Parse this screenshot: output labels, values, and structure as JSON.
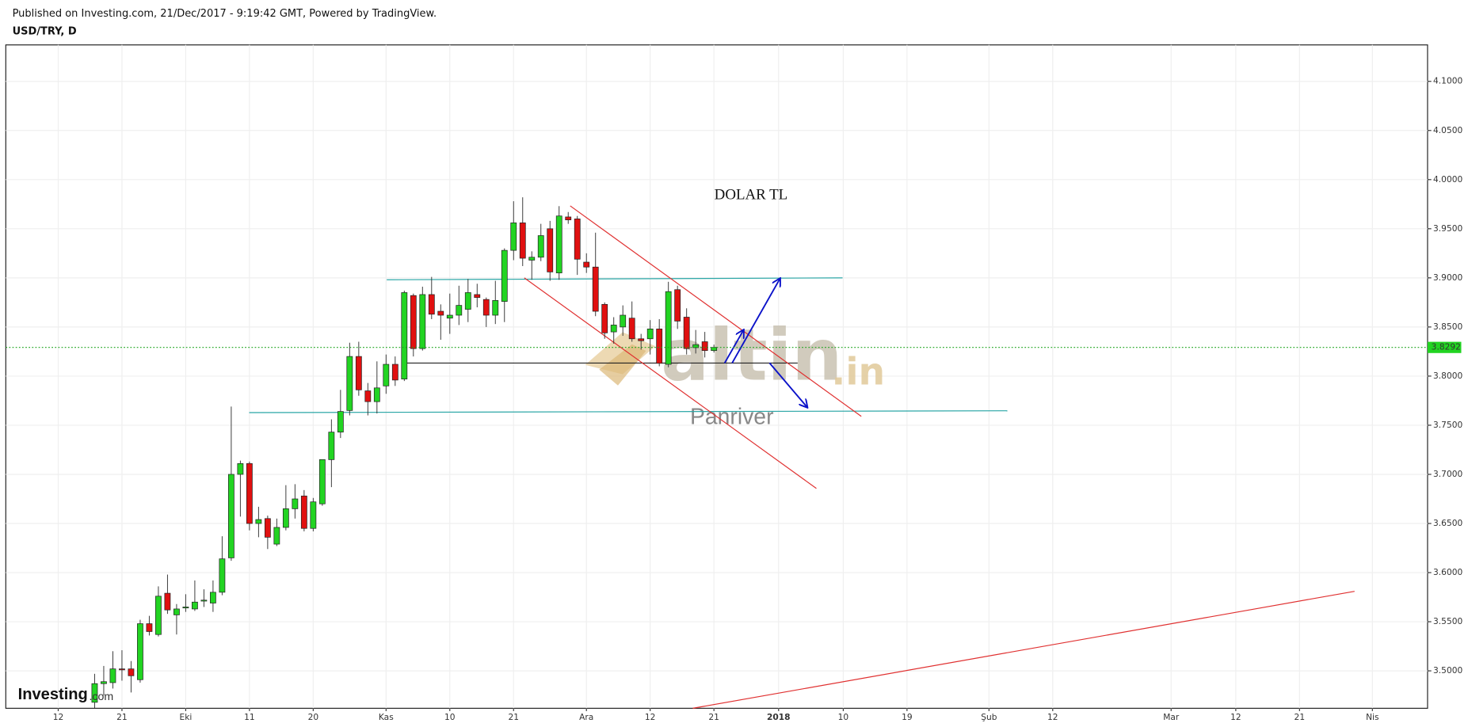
{
  "header": {
    "published": "Published on Investing.com, 21/Dec/2017 - 9:19:42 GMT, Powered by TradingView.",
    "symbol": "USD/TRY, D"
  },
  "chart_data": {
    "type": "candlestick",
    "up_color": "#22d422",
    "down_color": "#e01010",
    "grid": true,
    "annotation": "DOLAR TL",
    "watermark_main": "altin",
    "watermark_suffix": ".in",
    "watermark_sub": "Panriver",
    "logo_main": "Investing",
    "logo_suffix": ".com",
    "last_price": 3.8292,
    "xlim": [
      -5.755,
      150.36
    ],
    "xticks": [
      {
        "value": 0,
        "label": "12"
      },
      {
        "value": 7,
        "label": "21"
      },
      {
        "value": 14,
        "label": "Eki"
      },
      {
        "value": 21,
        "label": "11"
      },
      {
        "value": 28,
        "label": "20"
      },
      {
        "value": 36,
        "label": "Kas"
      },
      {
        "value": 43,
        "label": "10"
      },
      {
        "value": 50,
        "label": "21"
      },
      {
        "value": 58,
        "label": "Ara"
      },
      {
        "value": 65,
        "label": "12"
      },
      {
        "value": 72,
        "label": "21"
      },
      {
        "value": 79.1,
        "label": "2018"
      },
      {
        "value": 86.2,
        "label": "10"
      },
      {
        "value": 93.2,
        "label": "19"
      },
      {
        "value": 102.2,
        "label": "Şub"
      },
      {
        "value": 109.2,
        "label": "12"
      },
      {
        "value": 122.2,
        "label": "Mar"
      },
      {
        "value": 129.3,
        "label": "12"
      },
      {
        "value": 136.3,
        "label": "21"
      },
      {
        "value": 144.3,
        "label": "Nis"
      }
    ],
    "ylim": [
      3.4619,
      4.1371
    ],
    "yticks": [
      {
        "value": 3.5,
        "label": "3.5000"
      },
      {
        "value": 3.55,
        "label": "3.5500"
      },
      {
        "value": 3.6,
        "label": "3.6000"
      },
      {
        "value": 3.65,
        "label": "3.6500"
      },
      {
        "value": 3.7,
        "label": "3.7000"
      },
      {
        "value": 3.75,
        "label": "3.7500"
      },
      {
        "value": 3.8,
        "label": "3.8000"
      },
      {
        "value": 3.85,
        "label": "3.8500"
      },
      {
        "value": 3.9,
        "label": "3.9000"
      },
      {
        "value": 3.95,
        "label": "3.9500"
      },
      {
        "value": 4.0,
        "label": "4.0000"
      },
      {
        "value": 4.05,
        "label": "4.0500"
      },
      {
        "value": 4.1,
        "label": "4.1000"
      }
    ],
    "x": [
      4,
      5,
      6,
      7,
      8,
      9,
      10,
      11,
      12,
      13,
      14,
      15,
      16,
      17,
      18,
      19,
      20,
      21,
      22,
      23,
      24,
      25,
      26,
      27,
      28,
      29,
      30,
      31,
      32,
      33,
      34,
      35,
      36,
      37,
      38,
      39,
      40,
      41,
      42,
      43,
      44,
      45,
      46,
      47,
      48,
      49,
      50,
      51,
      52,
      53,
      54,
      55,
      56,
      57,
      58,
      59,
      60,
      61,
      62,
      63,
      64,
      65,
      66,
      67,
      68,
      69,
      70,
      71,
      72
    ],
    "open": [
      3.468,
      3.487,
      3.488,
      3.502,
      3.502,
      3.491,
      3.548,
      3.537,
      3.579,
      3.557,
      3.564,
      3.563,
      3.571,
      3.569,
      3.58,
      3.615,
      3.7,
      3.711,
      3.65,
      3.655,
      3.629,
      3.646,
      3.665,
      3.678,
      3.645,
      3.67,
      3.715,
      3.743,
      3.765,
      3.82,
      3.785,
      3.774,
      3.79,
      3.812,
      3.797,
      3.882,
      3.828,
      3.883,
      3.866,
      3.859,
      3.862,
      3.868,
      3.883,
      3.878,
      3.862,
      3.876,
      3.928,
      3.956,
      3.918,
      3.921,
      3.95,
      3.905,
      3.962,
      3.96,
      3.916,
      3.911,
      3.873,
      3.845,
      3.85,
      3.859,
      3.838,
      3.838,
      3.848,
      3.812,
      3.888,
      3.86,
      3.829,
      3.835,
      3.826
    ],
    "high": [
      3.497,
      3.505,
      3.52,
      3.521,
      3.51,
      3.552,
      3.556,
      3.586,
      3.598,
      3.568,
      3.578,
      3.592,
      3.583,
      3.592,
      3.637,
      3.769,
      3.714,
      3.713,
      3.667,
      3.658,
      3.655,
      3.689,
      3.69,
      3.684,
      3.676,
      3.715,
      3.756,
      3.786,
      3.834,
      3.835,
      3.793,
      3.815,
      3.822,
      3.82,
      3.887,
      3.884,
      3.891,
      3.901,
      3.873,
      3.884,
      3.892,
      3.899,
      3.894,
      3.88,
      3.897,
      3.93,
      3.978,
      3.982,
      3.927,
      3.955,
      3.958,
      3.973,
      3.967,
      3.963,
      3.925,
      3.946,
      3.875,
      3.86,
      3.872,
      3.876,
      3.843,
      3.857,
      3.858,
      3.896,
      3.892,
      3.869,
      3.847,
      3.845,
      3.832
    ],
    "low": [
      3.462,
      3.475,
      3.482,
      3.49,
      3.478,
      3.488,
      3.536,
      3.535,
      3.558,
      3.537,
      3.56,
      3.561,
      3.565,
      3.56,
      3.577,
      3.612,
      3.657,
      3.643,
      3.636,
      3.624,
      3.627,
      3.643,
      3.655,
      3.642,
      3.642,
      3.668,
      3.687,
      3.737,
      3.76,
      3.78,
      3.76,
      3.762,
      3.782,
      3.79,
      3.795,
      3.82,
      3.826,
      3.858,
      3.837,
      3.843,
      3.852,
      3.855,
      3.87,
      3.85,
      3.853,
      3.855,
      3.918,
      3.912,
      3.898,
      3.917,
      3.897,
      3.898,
      3.955,
      3.903,
      3.905,
      3.861,
      3.838,
      3.833,
      3.841,
      3.835,
      3.827,
      3.822,
      3.81,
      3.809,
      3.848,
      3.822,
      3.823,
      3.819,
      3.824
    ],
    "close": [
      3.487,
      3.489,
      3.502,
      3.501,
      3.495,
      3.548,
      3.54,
      3.576,
      3.562,
      3.563,
      3.565,
      3.57,
      3.572,
      3.58,
      3.614,
      3.7,
      3.711,
      3.65,
      3.654,
      3.636,
      3.646,
      3.665,
      3.675,
      3.645,
      3.672,
      3.715,
      3.743,
      3.764,
      3.82,
      3.786,
      3.774,
      3.788,
      3.812,
      3.796,
      3.885,
      3.828,
      3.883,
      3.863,
      3.862,
      3.862,
      3.872,
      3.885,
      3.88,
      3.862,
      3.877,
      3.928,
      3.956,
      3.92,
      3.921,
      3.943,
      3.906,
      3.963,
      3.959,
      3.919,
      3.911,
      3.866,
      3.844,
      3.852,
      3.862,
      3.838,
      3.836,
      3.848,
      3.813,
      3.886,
      3.856,
      3.828,
      3.832,
      3.826,
      3.8292
    ]
  }
}
